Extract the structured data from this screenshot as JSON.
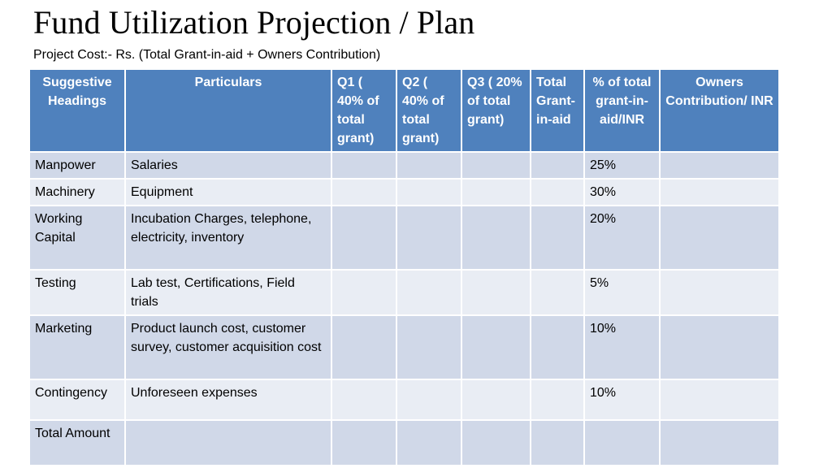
{
  "slide": {
    "title": "Fund Utilization Projection / Plan",
    "subtitle": "Project Cost:- Rs. (Total Grant-in-aid + Owners Contribution)"
  },
  "table": {
    "headers": [
      "Suggestive Headings",
      "Particulars",
      "Q1 ( 40% of total grant)",
      "Q2 ( 40% of total grant)",
      "Q3 ( 20% of total grant)",
      "Total Grant-in-aid",
      "% of total grant-in-aid/INR",
      "Owners Contribution/ INR"
    ],
    "rows": [
      {
        "heading": "Manpower",
        "particulars": "Salaries",
        "q1": "",
        "q2": "",
        "q3": "",
        "total_grant": "",
        "percent": "25%",
        "owners": ""
      },
      {
        "heading": "Machinery",
        "particulars": "Equipment",
        "q1": "",
        "q2": "",
        "q3": "",
        "total_grant": "",
        "percent": "30%",
        "owners": ""
      },
      {
        "heading": "Working Capital",
        "particulars": "Incubation Charges, telephone, electricity, inventory",
        "q1": "",
        "q2": "",
        "q3": "",
        "total_grant": "",
        "percent": "20%",
        "owners": ""
      },
      {
        "heading": "Testing",
        "particulars": "Lab test, Certifications, Field trials",
        "q1": "",
        "q2": "",
        "q3": "",
        "total_grant": "",
        "percent": "5%",
        "owners": ""
      },
      {
        "heading": "Marketing",
        "particulars": "Product launch cost, customer survey, customer acquisition cost",
        "q1": "",
        "q2": "",
        "q3": "",
        "total_grant": "",
        "percent": "10%",
        "owners": ""
      },
      {
        "heading": "Contingency",
        "particulars": "Unforeseen expenses",
        "q1": "",
        "q2": "",
        "q3": "",
        "total_grant": "",
        "percent": "10%",
        "owners": ""
      },
      {
        "heading": "Total Amount",
        "particulars": "",
        "q1": "",
        "q2": "",
        "q3": "",
        "total_grant": "",
        "percent": "",
        "owners": ""
      }
    ]
  },
  "colors": {
    "header_bg": "#4f81bd",
    "row_odd_bg": "#d0d8e8",
    "row_even_bg": "#e9edf4"
  }
}
